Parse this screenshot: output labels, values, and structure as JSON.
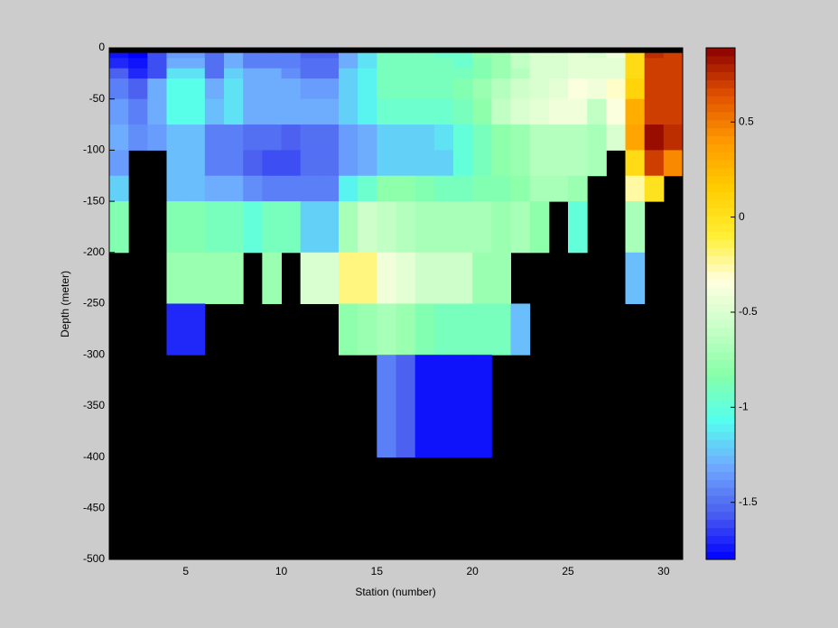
{
  "chart_data": {
    "type": "heatmap",
    "xlabel": "Station (number)",
    "ylabel": "Depth (meter)",
    "xlim": [
      1,
      31
    ],
    "ylim": [
      -500,
      0
    ],
    "xticks": [
      5,
      10,
      15,
      20,
      25,
      30
    ],
    "yticks": [
      0,
      -50,
      -100,
      -150,
      -200,
      -250,
      -300,
      -350,
      -400,
      -450,
      -500
    ],
    "x_edges": [
      1,
      2,
      3,
      4,
      5,
      6,
      7,
      8,
      9,
      10,
      11,
      12,
      13,
      14,
      15,
      16,
      17,
      18,
      19,
      20,
      21,
      22,
      23,
      24,
      25,
      26,
      27,
      28,
      29,
      30,
      31
    ],
    "y_edges": [
      0,
      -5,
      -10,
      -20,
      -30,
      -50,
      -75,
      -100,
      -125,
      -150,
      -200,
      -250,
      -300,
      -400,
      -500
    ],
    "z": [
      [
        null,
        null,
        null,
        null,
        null,
        null,
        null,
        null,
        null,
        null,
        null,
        null,
        null,
        null,
        null,
        null,
        null,
        null,
        null,
        null,
        null,
        null,
        null,
        null,
        null,
        null,
        null,
        null,
        null,
        null
      ],
      [
        -1.75,
        -1.8,
        -1.6,
        -1.35,
        -1.35,
        -1.5,
        -1.3,
        -1.45,
        -1.45,
        -1.45,
        -1.55,
        -1.55,
        -1.3,
        -1.15,
        -0.9,
        -0.9,
        -0.9,
        -0.95,
        -0.95,
        -0.8,
        -0.75,
        -0.6,
        -0.5,
        -0.5,
        -0.45,
        -0.5,
        -0.4,
        0.05,
        0.75,
        0.7
      ],
      [
        -1.7,
        -1.75,
        -1.6,
        -1.3,
        -1.3,
        -1.5,
        -1.3,
        -1.45,
        -1.45,
        -1.45,
        -1.5,
        -1.5,
        -1.3,
        -1.15,
        -0.9,
        -0.9,
        -0.9,
        -0.9,
        -0.95,
        -0.85,
        -0.75,
        -0.6,
        -0.5,
        -0.5,
        -0.45,
        -0.45,
        -0.45,
        0.05,
        0.7,
        0.7
      ],
      [
        -1.55,
        -1.7,
        -1.6,
        -1.15,
        -1.15,
        -1.5,
        -1.2,
        -1.3,
        -1.3,
        -1.4,
        -1.5,
        -1.5,
        -1.2,
        -1.1,
        -0.9,
        -0.9,
        -0.9,
        -0.9,
        -0.9,
        -0.85,
        -0.75,
        -0.65,
        -0.5,
        -0.5,
        -0.45,
        -0.45,
        -0.45,
        0.05,
        0.7,
        0.7
      ],
      [
        -1.45,
        -1.55,
        -1.3,
        -1.05,
        -1.05,
        -1.3,
        -1.15,
        -1.3,
        -1.3,
        -1.3,
        -1.35,
        -1.35,
        -1.2,
        -1.1,
        -0.9,
        -0.9,
        -0.9,
        -0.9,
        -0.85,
        -0.75,
        -0.65,
        -0.55,
        -0.5,
        -0.45,
        -0.35,
        -0.4,
        -0.3,
        0.1,
        0.7,
        0.7
      ],
      [
        -1.35,
        -1.45,
        -1.3,
        -1.05,
        -1.05,
        -1.25,
        -1.15,
        -1.3,
        -1.3,
        -1.3,
        -1.3,
        -1.3,
        -1.2,
        -1.1,
        -0.95,
        -0.95,
        -0.95,
        -0.95,
        -0.9,
        -0.8,
        -0.6,
        -0.5,
        -0.45,
        -0.4,
        -0.4,
        -0.6,
        -0.35,
        0.3,
        0.7,
        0.7
      ],
      [
        -1.3,
        -1.4,
        -1.35,
        -1.25,
        -1.25,
        -1.45,
        -1.45,
        -1.5,
        -1.5,
        -1.55,
        -1.5,
        -1.5,
        -1.35,
        -1.3,
        -1.2,
        -1.2,
        -1.2,
        -1.15,
        -1.0,
        -0.9,
        -0.8,
        -0.75,
        -0.65,
        -0.65,
        -0.65,
        -0.7,
        -0.5,
        0.35,
        0.85,
        0.75
      ],
      [
        -1.35,
        null,
        null,
        -1.25,
        -1.25,
        -1.45,
        -1.45,
        -1.55,
        -1.6,
        -1.6,
        -1.5,
        -1.5,
        -1.35,
        -1.3,
        -1.2,
        -1.2,
        -1.2,
        -1.2,
        -1.0,
        -0.9,
        -0.8,
        -0.75,
        -0.65,
        -0.65,
        -0.65,
        -0.7,
        null,
        0.05,
        0.7,
        0.45
      ],
      [
        -1.2,
        null,
        null,
        -1.25,
        -1.25,
        -1.3,
        -1.3,
        -1.4,
        -1.45,
        -1.45,
        -1.45,
        -1.45,
        -1.1,
        -0.95,
        -0.8,
        -0.8,
        -0.85,
        -0.9,
        -0.9,
        -0.85,
        -0.85,
        -0.8,
        -0.7,
        -0.7,
        -0.75,
        null,
        null,
        -0.25,
        0.0,
        null
      ],
      [
        -0.85,
        null,
        null,
        -0.85,
        -0.85,
        -0.9,
        -0.9,
        -1.0,
        -0.9,
        -0.9,
        -1.2,
        -1.2,
        -0.7,
        -0.55,
        -0.6,
        -0.65,
        -0.7,
        -0.7,
        -0.7,
        -0.7,
        -0.75,
        -0.7,
        -0.8,
        null,
        -1.0,
        null,
        null,
        -0.7,
        null,
        null
      ],
      [
        null,
        null,
        null,
        -0.75,
        -0.75,
        -0.75,
        -0.75,
        null,
        -0.75,
        null,
        -0.5,
        -0.5,
        -0.2,
        -0.2,
        -0.4,
        -0.45,
        -0.55,
        -0.55,
        -0.55,
        -0.75,
        -0.75,
        null,
        null,
        null,
        null,
        null,
        null,
        -1.25,
        null,
        null
      ],
      [
        null,
        null,
        null,
        -1.7,
        -1.7,
        null,
        null,
        null,
        null,
        null,
        null,
        null,
        -0.8,
        -0.75,
        -0.7,
        -0.75,
        -0.85,
        -0.9,
        -0.9,
        -0.9,
        -0.9,
        -1.25,
        null,
        null,
        null,
        null,
        null,
        null,
        null,
        null
      ],
      [
        null,
        null,
        null,
        null,
        null,
        null,
        null,
        null,
        null,
        null,
        null,
        null,
        null,
        null,
        -1.45,
        -1.55,
        -1.75,
        -1.75,
        -1.75,
        -1.75,
        null,
        null,
        null,
        null,
        null,
        null,
        null,
        null,
        null,
        null
      ],
      [
        null,
        null,
        null,
        null,
        null,
        null,
        null,
        null,
        null,
        null,
        null,
        null,
        null,
        null,
        null,
        null,
        null,
        null,
        null,
        null,
        null,
        null,
        null,
        null,
        null,
        null,
        null,
        null,
        null,
        null
      ]
    ],
    "clim": [
      -1.8,
      0.89
    ],
    "cticks": [
      0.5,
      0,
      -0.5,
      -1,
      -1.5
    ],
    "colormap": [
      "#0000ff",
      "#4b5ff0",
      "#6fa9ff",
      "#55ffee",
      "#88ffa8",
      "#c8ffc8",
      "#ffffe0",
      "#ffee30",
      "#ffcc00",
      "#ff9900",
      "#e05000",
      "#8b0000"
    ],
    "nan_color": "#000000",
    "colorbar_steps": 64
  }
}
